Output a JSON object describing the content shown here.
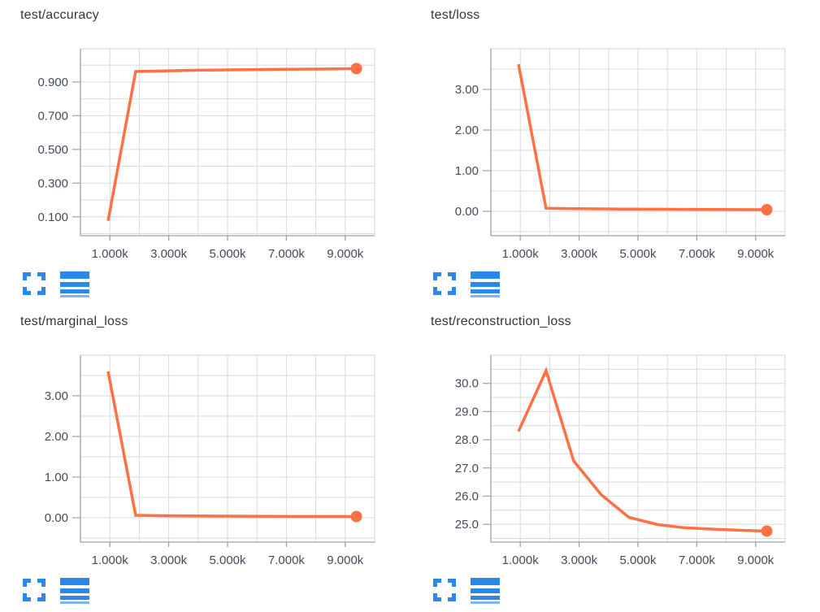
{
  "colors": {
    "line": "#ff7043",
    "icon_blue": "#2b87ea",
    "grid": "#dadada",
    "border": "#d0d3d8",
    "axis": "#9aa2ad",
    "tick_label": "#434b59",
    "title": "#333639"
  },
  "toolbar": {
    "icons": [
      "expand-icon",
      "log-scale-icon"
    ]
  },
  "chart_data": [
    {
      "type": "line",
      "title": "test/accuracy",
      "x": [
        938,
        1876,
        2814,
        3752,
        4690,
        5628,
        6566,
        7504,
        8442,
        9380
      ],
      "y": [
        0.076,
        0.962,
        0.966,
        0.969,
        0.971,
        0.973,
        0.9745,
        0.976,
        0.977,
        0.9795
      ],
      "xlim": [
        0,
        10000
      ],
      "ylim": [
        -0.012,
        1.097
      ],
      "x_grid_step": 1000,
      "y_grid_step": 0.1,
      "x_tick_values": [
        1000,
        3000,
        5000,
        7000,
        9000
      ],
      "x_tick_labels": [
        "1.000k",
        "3.000k",
        "5.000k",
        "7.000k",
        "9.000k"
      ],
      "y_tick_values": [
        0.1,
        0.3,
        0.5,
        0.7,
        0.9
      ],
      "y_tick_labels": [
        "0.100",
        "0.300",
        "0.500",
        "0.700",
        "0.900"
      ],
      "xlabel": "",
      "ylabel": "",
      "grid": true,
      "legend": "none",
      "end_dot": true,
      "line_color": "#ff7043"
    },
    {
      "type": "line",
      "title": "test/loss",
      "x": [
        938,
        1876,
        2814,
        3752,
        4690,
        5628,
        6566,
        7504,
        8442,
        9380
      ],
      "y": [
        3.62,
        0.075,
        0.065,
        0.06,
        0.055,
        0.052,
        0.049,
        0.046,
        0.043,
        0.04
      ],
      "xlim": [
        0,
        10000
      ],
      "ylim": [
        -0.6,
        4.0
      ],
      "x_grid_step": 1000,
      "y_grid_step": 0.5,
      "x_tick_values": [
        1000,
        3000,
        5000,
        7000,
        9000
      ],
      "x_tick_labels": [
        "1.000k",
        "3.000k",
        "5.000k",
        "7.000k",
        "9.000k"
      ],
      "y_tick_values": [
        0,
        1,
        2,
        3
      ],
      "y_tick_labels": [
        "0.00",
        "1.00",
        "2.00",
        "3.00"
      ],
      "xlabel": "",
      "ylabel": "",
      "grid": true,
      "legend": "none",
      "end_dot": true,
      "line_color": "#ff7043"
    },
    {
      "type": "line",
      "title": "test/marginal_loss",
      "x": [
        938,
        1876,
        2814,
        3752,
        4690,
        5628,
        6566,
        7504,
        8442,
        9380
      ],
      "y": [
        3.6,
        0.06,
        0.05,
        0.044,
        0.04,
        0.037,
        0.034,
        0.032,
        0.031,
        0.03
      ],
      "xlim": [
        0,
        10000
      ],
      "ylim": [
        -0.6,
        4.0
      ],
      "x_grid_step": 1000,
      "y_grid_step": 0.5,
      "x_tick_values": [
        1000,
        3000,
        5000,
        7000,
        9000
      ],
      "x_tick_labels": [
        "1.000k",
        "3.000k",
        "5.000k",
        "7.000k",
        "9.000k"
      ],
      "y_tick_values": [
        0,
        1,
        2,
        3
      ],
      "y_tick_labels": [
        "0.00",
        "1.00",
        "2.00",
        "3.00"
      ],
      "xlabel": "",
      "ylabel": "",
      "grid": true,
      "legend": "none",
      "end_dot": true,
      "line_color": "#ff7043"
    },
    {
      "type": "line",
      "title": "test/reconstruction_loss",
      "x": [
        938,
        1876,
        2814,
        3752,
        4690,
        5628,
        6566,
        7504,
        8442,
        9380
      ],
      "y": [
        28.3,
        30.45,
        27.25,
        26.05,
        25.25,
        25.0,
        24.88,
        24.83,
        24.79,
        24.76
      ],
      "xlim": [
        0,
        10000
      ],
      "ylim": [
        24.37,
        31.0
      ],
      "x_grid_step": 1000,
      "y_grid_step": 0.5,
      "x_tick_values": [
        1000,
        3000,
        5000,
        7000,
        9000
      ],
      "x_tick_labels": [
        "1.000k",
        "3.000k",
        "5.000k",
        "7.000k",
        "9.000k"
      ],
      "y_tick_values": [
        25,
        26,
        27,
        28,
        29,
        30
      ],
      "y_tick_labels": [
        "25.0",
        "26.0",
        "27.0",
        "28.0",
        "29.0",
        "30.0"
      ],
      "xlabel": "",
      "ylabel": "",
      "grid": true,
      "legend": "none",
      "end_dot": true,
      "line_color": "#ff7043"
    }
  ]
}
